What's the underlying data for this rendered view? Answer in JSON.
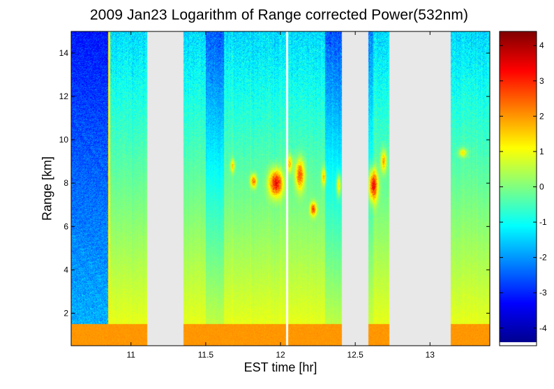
{
  "chart_data": {
    "type": "heatmap",
    "title": "2009 Jan23  Logarithm of Range corrected Power(532nm)",
    "xlabel": "EST time [hr]",
    "ylabel": "Range [km]",
    "xlim": [
      10.6,
      13.4
    ],
    "ylim": [
      0.5,
      15
    ],
    "xticks": [
      {
        "value": 11,
        "label": "11"
      },
      {
        "value": 11.5,
        "label": "11.5"
      },
      {
        "value": 12,
        "label": "12"
      },
      {
        "value": 12.5,
        "label": "12.5"
      },
      {
        "value": 13,
        "label": "13"
      }
    ],
    "yticks": [
      {
        "value": 2,
        "label": "2"
      },
      {
        "value": 4,
        "label": "4"
      },
      {
        "value": 6,
        "label": "6"
      },
      {
        "value": 8,
        "label": "8"
      },
      {
        "value": 10,
        "label": "10"
      },
      {
        "value": 12,
        "label": "12"
      },
      {
        "value": 14,
        "label": "14"
      }
    ],
    "colorbar": {
      "colormap": "jet",
      "range": [
        -4.4,
        4.4
      ],
      "ticks": [
        {
          "value": 4,
          "label": "4"
        },
        {
          "value": 3,
          "label": "3"
        },
        {
          "value": 2,
          "label": "2"
        },
        {
          "value": 1,
          "label": "1"
        },
        {
          "value": 0,
          "label": "0"
        },
        {
          "value": -1,
          "label": "-1"
        },
        {
          "value": -2,
          "label": "-2"
        },
        {
          "value": -3,
          "label": "-3"
        },
        {
          "value": -4,
          "label": "-4"
        }
      ]
    },
    "data_gaps": [
      {
        "x0": 11.11,
        "x1": 11.35
      },
      {
        "x0": 12.41,
        "x1": 12.59
      },
      {
        "x0": 12.73,
        "x1": 13.14
      }
    ],
    "cloud_layer": {
      "range_km": [
        6.6,
        9.5
      ],
      "value_max": 4.3
    },
    "boundary_layer": {
      "range_km": [
        0.5,
        1.5
      ],
      "value": 2.0
    },
    "background_colors": {
      "gap": "#e8e8e8"
    }
  }
}
